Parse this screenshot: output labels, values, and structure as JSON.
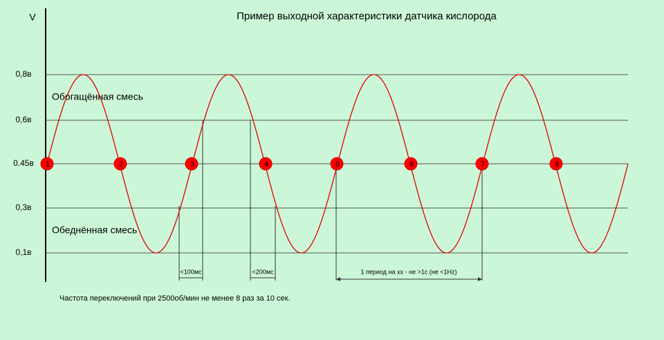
{
  "title": "Пример выходной характеристики датчика кислорода",
  "axis_unit": "V",
  "y_labels": [
    "0,8в",
    "0,6в",
    "0.45в",
    "0,3в",
    "0,1в"
  ],
  "zones": {
    "rich": "Обогащённая смесь",
    "lean": "Обеднённая смесь"
  },
  "points": [
    "1",
    "2",
    "3",
    "4",
    "5",
    "6",
    "7",
    "8"
  ],
  "intervals": [
    "<100мс",
    "<200мс",
    "1 период на хх - не >1с (не <1Hz)"
  ],
  "footnote": "Частота переключений при 2500об/мин не менее 8 раз за 10 сек."
}
